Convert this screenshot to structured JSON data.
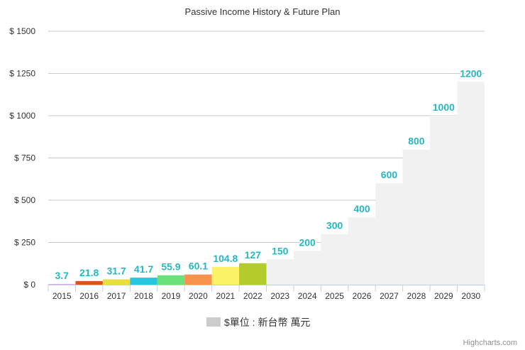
{
  "chart_data": {
    "type": "bar",
    "title": "Passive Income History & Future Plan",
    "categories": [
      "2015",
      "2016",
      "2017",
      "2018",
      "2019",
      "2020",
      "2021",
      "2022",
      "2023",
      "2024",
      "2025",
      "2026",
      "2027",
      "2028",
      "2029",
      "2030"
    ],
    "series": [
      {
        "name": "$單位 : 新台幣 萬元",
        "values": [
          3.7,
          21.8,
          31.7,
          41.7,
          55.9,
          60.1,
          104.8,
          127,
          150,
          200,
          300,
          400,
          600,
          800,
          1000,
          1200
        ],
        "data_labels": [
          "3.7",
          "21.8",
          "31.7",
          "41.7",
          "55.9",
          "60.1",
          "104.8",
          "127",
          "150",
          "200",
          "300",
          "400",
          "600",
          "800",
          "1000",
          "1200"
        ]
      }
    ],
    "point_colors": [
      "#d5a3e3",
      "#e0531f",
      "#e9df3c",
      "#27c5de",
      "#6ae07a",
      "#f7924d",
      "#fdf165",
      "#b3cb2b",
      "#f1f1f1",
      "#f1f1f1",
      "#f1f1f1",
      "#f1f1f1",
      "#f1f1f1",
      "#f1f1f1",
      "#f1f1f1",
      "#f1f1f1"
    ],
    "ylim": [
      0,
      1500
    ],
    "yticks": [
      0,
      250,
      500,
      750,
      1000,
      1250,
      1500
    ],
    "ytick_labels": [
      "$ 0",
      "$ 250",
      "$ 500",
      "$ 750",
      "$ 1000",
      "$ 1250",
      "$ 1500"
    ],
    "grid": true,
    "legend_position": "bottom-center",
    "legend_color": "#cccccc",
    "data_label_color": "#27b6c4",
    "credits": "Highcharts.com"
  }
}
